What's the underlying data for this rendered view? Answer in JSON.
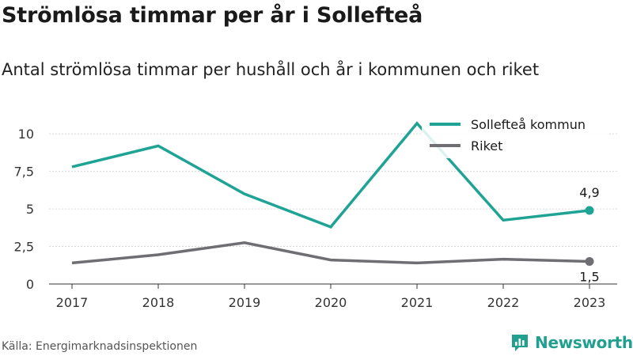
{
  "title": "Strömlösa timmar per år i Sollefteå",
  "subtitle": "Antal strömlösa timmar per hushåll och år i kommunen och riket",
  "source": "Källa: Energimarknadsinspektionen",
  "brand": {
    "name": "Newsworthy",
    "icon": "newsworthy-logo-icon",
    "color": "#21a090"
  },
  "chart_data": {
    "type": "line",
    "x": [
      "2017",
      "2018",
      "2019",
      "2020",
      "2021",
      "2022",
      "2023"
    ],
    "yticks": [
      {
        "value": 0,
        "label": "0"
      },
      {
        "value": 2.5,
        "label": "2,5"
      },
      {
        "value": 5,
        "label": "5"
      },
      {
        "value": 7.5,
        "label": "7,5"
      },
      {
        "value": 10,
        "label": "10"
      }
    ],
    "ylim": [
      0,
      10.8
    ],
    "grid": true,
    "legend_position": "top-right",
    "series": [
      {
        "name": "Sollefteå kommun",
        "color": "#1fa394",
        "values": [
          7.8,
          9.2,
          6.0,
          3.8,
          10.7,
          4.25,
          4.9
        ],
        "end_label": "4,9"
      },
      {
        "name": "Riket",
        "color": "#6e6e73",
        "values": [
          1.4,
          1.95,
          2.75,
          1.6,
          1.4,
          1.65,
          1.5
        ],
        "end_label": "1,5"
      }
    ]
  }
}
